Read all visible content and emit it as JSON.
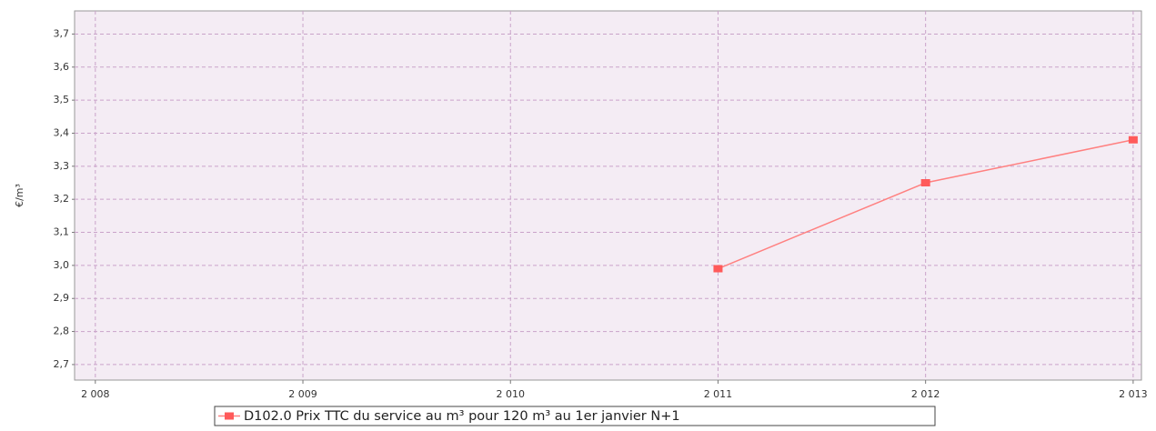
{
  "chart_data": {
    "type": "line",
    "y_label": "€/m³",
    "x": [
      2011,
      2012,
      2013
    ],
    "series": [
      {
        "name": "D102.0 Prix TTC du service au m³ pour 120 m³ au 1er janvier N+1",
        "color": "#ff5a5a",
        "values": [
          2.99,
          3.25,
          3.38
        ]
      }
    ],
    "xlim": [
      2007.9,
      2013.04
    ],
    "xticks": [
      {
        "value": 2008,
        "label": "2 008"
      },
      {
        "value": 2009,
        "label": "2 009"
      },
      {
        "value": 2010,
        "label": "2 010"
      },
      {
        "value": 2011,
        "label": "2 011"
      },
      {
        "value": 2012,
        "label": "2 012"
      },
      {
        "value": 2013,
        "label": "2 013"
      }
    ],
    "ylim": [
      2.653,
      3.77
    ],
    "yticks": [
      {
        "value": 2.7,
        "label": "2,7"
      },
      {
        "value": 2.8,
        "label": "2,8"
      },
      {
        "value": 2.9,
        "label": "2,9"
      },
      {
        "value": 3.0,
        "label": "3,0"
      },
      {
        "value": 3.1,
        "label": "3,1"
      },
      {
        "value": 3.2,
        "label": "3,2"
      },
      {
        "value": 3.3,
        "label": "3,3"
      },
      {
        "value": 3.4,
        "label": "3,4"
      },
      {
        "value": 3.5,
        "label": "3,5"
      },
      {
        "value": 3.6,
        "label": "3,6"
      },
      {
        "value": 3.7,
        "label": "3,7"
      }
    ],
    "grid": true,
    "legend": "bottom"
  }
}
